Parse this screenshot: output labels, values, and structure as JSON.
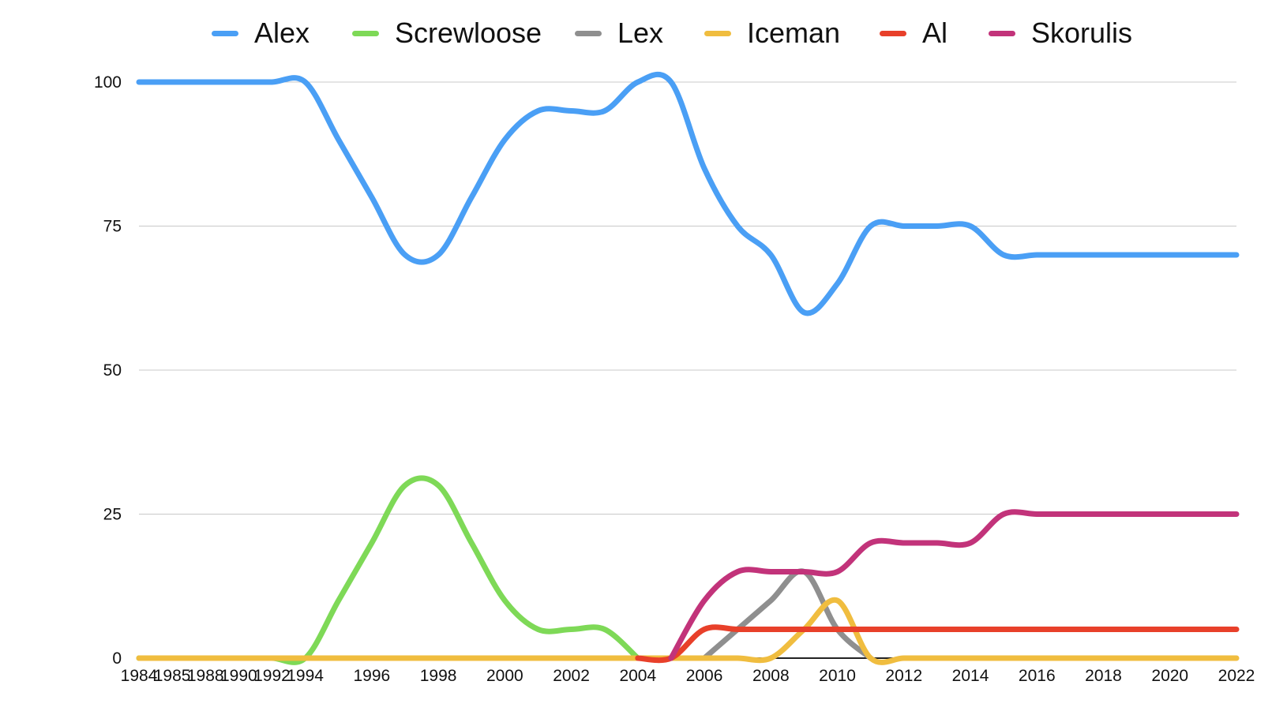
{
  "chart_data": {
    "type": "line",
    "title": "",
    "xlabel": "",
    "ylabel": "",
    "ylim": [
      0,
      100
    ],
    "yticks": [
      0,
      25,
      50,
      75,
      100
    ],
    "grid": true,
    "legend_position": "top",
    "x": [
      "1984",
      "1985",
      "1988",
      "1990",
      "1992",
      "1994",
      "1995",
      "1996",
      "1997",
      "1998",
      "1999",
      "2000",
      "2001",
      "2002",
      "2003",
      "2004",
      "2005",
      "2006",
      "2007",
      "2008",
      "2009",
      "2010",
      "2011",
      "2012",
      "2013",
      "2014",
      "2015",
      "2016",
      "2017",
      "2018",
      "2019",
      "2020",
      "2021",
      "2022"
    ],
    "xtick_labels": [
      "1984",
      "1985",
      "1988",
      "1990",
      "1992",
      "1994",
      "1996",
      "1998",
      "2000",
      "2002",
      "2004",
      "2006",
      "2008",
      "2010",
      "2012",
      "2014",
      "2016",
      "2018",
      "2020",
      "2022"
    ],
    "series": [
      {
        "name": "Alex",
        "color": "#4a9ff5",
        "values": [
          100,
          100,
          100,
          100,
          100,
          100,
          90,
          80,
          70,
          70,
          80,
          90,
          95,
          95,
          95,
          100,
          100,
          85,
          75,
          70,
          60,
          65,
          75,
          75,
          75,
          75,
          70,
          70,
          70,
          70,
          70,
          70,
          70,
          70
        ]
      },
      {
        "name": "Screwloose",
        "color": "#7ed957",
        "values": [
          0,
          0,
          0,
          0,
          0,
          0,
          10,
          20,
          30,
          30,
          20,
          10,
          5,
          5,
          5,
          0,
          null,
          null,
          null,
          null,
          null,
          null,
          null,
          null,
          null,
          null,
          null,
          null,
          null,
          null,
          null,
          null,
          null,
          null
        ]
      },
      {
        "name": "Lex",
        "color": "#8f8f8f",
        "values": [
          null,
          null,
          null,
          null,
          null,
          null,
          null,
          null,
          null,
          null,
          null,
          null,
          null,
          null,
          null,
          null,
          null,
          0,
          5,
          10,
          15,
          5,
          0,
          null,
          null,
          null,
          null,
          null,
          null,
          null,
          null,
          null,
          null,
          null
        ]
      },
      {
        "name": "Iceman",
        "color": "#f0bd3f",
        "values": [
          0,
          0,
          0,
          0,
          0,
          0,
          0,
          0,
          0,
          0,
          0,
          0,
          0,
          0,
          0,
          0,
          0,
          0,
          0,
          0,
          5,
          10,
          0,
          0,
          0,
          0,
          0,
          0,
          0,
          0,
          0,
          0,
          0,
          0
        ]
      },
      {
        "name": "Al",
        "color": "#e8402a",
        "values": [
          null,
          null,
          null,
          null,
          null,
          null,
          null,
          null,
          null,
          null,
          null,
          null,
          null,
          null,
          null,
          0,
          0,
          5,
          5,
          5,
          5,
          5,
          5,
          5,
          5,
          5,
          5,
          5,
          5,
          5,
          5,
          5,
          5,
          5
        ]
      },
      {
        "name": "Skorulis",
        "color": "#c2337a",
        "values": [
          null,
          null,
          null,
          null,
          null,
          null,
          null,
          null,
          null,
          null,
          null,
          null,
          null,
          null,
          null,
          null,
          0,
          10,
          15,
          15,
          15,
          15,
          20,
          20,
          20,
          20,
          25,
          25,
          25,
          25,
          25,
          25,
          25,
          25
        ]
      }
    ]
  }
}
